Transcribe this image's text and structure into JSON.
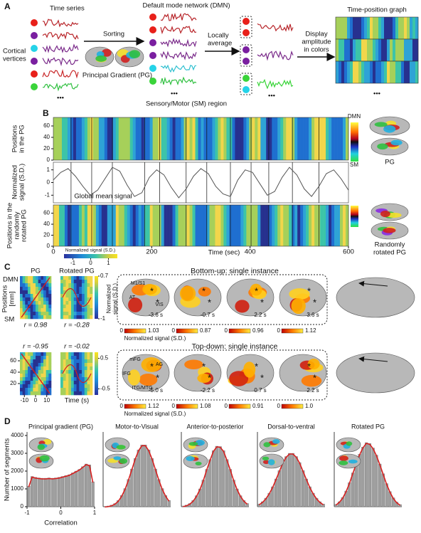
{
  "panel_a": {
    "label": "A",
    "time_series": "Time series",
    "cortical_vertices": [
      "Cortical",
      "vertices"
    ],
    "sorting": "Sorting",
    "principal_gradient": "Principal Gradient (PG)",
    "dmn": "Default mode network (DMN)",
    "sm_region": "Sensory/Motor (SM) region",
    "locally_average": [
      "Locally",
      "average"
    ],
    "display": [
      "Display",
      "amplitude",
      "in colors"
    ],
    "time_position_graph": "Time-position graph",
    "ellipsis": "•••"
  },
  "panel_b": {
    "label": "B",
    "dmn": "DMN",
    "sm": "SM",
    "pg": "PG",
    "randomly_rotated_pg": [
      "Randomly",
      "rotated PG"
    ],
    "top_heatmap": {
      "ylabel": [
        "Positions",
        "in the PG"
      ],
      "ylim": [
        0,
        75
      ],
      "yticks": [
        0,
        20,
        40,
        60
      ]
    },
    "signal": {
      "ylabel": [
        "Normalized",
        "signal (S.D.)"
      ],
      "ylim": [
        -1.6,
        1.6
      ],
      "yticks": [
        -1,
        0,
        1
      ],
      "annotation": "Global mean signal",
      "x": [
        0,
        15,
        30,
        45,
        60,
        75,
        90,
        105,
        120,
        135,
        150,
        165,
        180,
        195,
        210,
        225,
        240,
        255,
        270,
        285,
        300,
        315,
        330,
        345,
        360,
        375,
        390,
        405,
        420,
        435,
        450,
        465,
        480,
        495,
        510,
        525,
        540,
        555,
        570,
        585,
        600
      ],
      "values": [
        0.2,
        0.8,
        1.1,
        0.5,
        -0.3,
        -1.0,
        -0.6,
        0.3,
        1.2,
        0.9,
        -0.2,
        -1.1,
        -0.8,
        0.4,
        1.0,
        0.6,
        -0.4,
        -1.2,
        -0.5,
        0.5,
        1.1,
        0.7,
        -0.3,
        -0.9,
        -1.1,
        0.2,
        1.0,
        0.8,
        -0.1,
        -1.0,
        -0.7,
        0.4,
        1.2,
        0.6,
        -0.5,
        -1.1,
        -0.3,
        0.7,
        1.0,
        0.3,
        -0.6
      ]
    },
    "bottom_heatmap": {
      "ylabel": [
        "Positions in the",
        "randomly",
        "rotated PG"
      ],
      "ylim": [
        0,
        75
      ],
      "yticks": [
        0,
        20,
        40,
        60
      ]
    },
    "xlim": [
      0,
      600
    ],
    "xticks": [
      0,
      200,
      400,
      600
    ],
    "xlabel": "Time (sec)",
    "colorbar": {
      "label": "Normalized signal (S.D.)",
      "lim": [
        -1.5,
        1.5
      ],
      "ticks": [
        -1,
        0,
        1
      ]
    }
  },
  "panel_c": {
    "label": "C",
    "top": {
      "pg": "PG",
      "rotated_pg": "Rotated PG",
      "dmn": "DMN",
      "sm": "SM",
      "ylabel": [
        "Positions",
        "[mm]"
      ],
      "r_pg": "r = 0.98",
      "r_rot": "r = -0.28",
      "colorbar": {
        "lim": [
          -1,
          0.7
        ],
        "ticks": [
          0.7,
          -1
        ],
        "label": [
          "Normalized",
          "signal (S.D.)"
        ]
      },
      "title": "Bottom-up:  single instance",
      "times": [
        "-3.6 s",
        "-0.7 s",
        "2.2 s",
        "3.6 s"
      ],
      "scale_min": [
        0,
        0,
        0,
        0
      ],
      "scale_max": [
        1.03,
        0.87,
        0.96,
        1.12
      ],
      "regions": [
        "M1/S1",
        "AT",
        "VIS"
      ],
      "scale_label": "Normalized signal (S.D.)"
    },
    "bottom": {
      "r_pg": "r = -0.95",
      "r_rot": "r = -0.02",
      "ylim": [
        0,
        75
      ],
      "yticks": [
        20,
        40,
        60
      ],
      "xlim": [
        -14,
        14
      ],
      "xticks": [
        -10,
        0,
        10
      ],
      "xlabel": "Time (s)",
      "colorbar": {
        "lim": [
          -0.7,
          0.7
        ],
        "ticks": [
          0.5,
          -0.5
        ]
      },
      "title": "Top-down:  single instance",
      "times": [
        "-5.0 s",
        "-2.2 s",
        "0.7 s",
        "2.2 s"
      ],
      "scale_min": [
        0,
        0,
        0,
        0
      ],
      "scale_max": [
        1.12,
        1.08,
        0.91,
        {
          "value": 1,
          "label": "1.0"
        }
      ],
      "regions": [
        "mFG",
        "IFG",
        "AG",
        "ITG/MTG"
      ],
      "scale_label": "Normalized signal (S.D.)"
    }
  },
  "panel_d": {
    "label": "D"
  },
  "chart_data": [
    {
      "type": "histogram",
      "title": "Principal gradient (PG)",
      "ylabel": "Number of segments",
      "xlabel": "Correlation",
      "ylim": [
        0,
        4200
      ],
      "yticks": [
        0,
        1000,
        2000,
        3000,
        4000
      ],
      "xlim": [
        -1,
        1
      ],
      "xticks": [
        -1,
        0,
        1
      ],
      "color": "#9e9e9e",
      "bins": [
        -1,
        -0.9,
        -0.8,
        -0.7,
        -0.6,
        -0.5,
        -0.4,
        -0.3,
        -0.2,
        -0.1,
        0,
        0.1,
        0.2,
        0.3,
        0.4,
        0.5,
        0.6,
        0.7,
        0.8,
        0.9,
        1
      ],
      "values": [
        1150,
        1700,
        1650,
        1620,
        1600,
        1600,
        1620,
        1600,
        1620,
        1650,
        1700,
        1750,
        1800,
        1900,
        2000,
        2100,
        2250,
        2400,
        2350,
        1400
      ]
    },
    {
      "type": "histogram",
      "title": "Motor-to-Visual",
      "color": "#9e9e9e",
      "bins": [
        -1,
        -0.9,
        -0.8,
        -0.7,
        -0.6,
        -0.5,
        -0.4,
        -0.3,
        -0.2,
        -0.1,
        0,
        0.1,
        0.2,
        0.3,
        0.4,
        0.5,
        0.6,
        0.7,
        0.8,
        0.9,
        1
      ],
      "values": [
        20,
        40,
        90,
        180,
        350,
        630,
        1020,
        1530,
        2120,
        2710,
        3190,
        3470,
        3470,
        3190,
        2710,
        2120,
        1530,
        1020,
        630,
        350
      ]
    },
    {
      "type": "histogram",
      "title": "Anterior-to-posterior",
      "color": "#9e9e9e",
      "bins": [
        -1,
        -0.9,
        -0.8,
        -0.7,
        -0.6,
        -0.5,
        -0.4,
        -0.3,
        -0.2,
        -0.1,
        0,
        0.1,
        0.2,
        0.3,
        0.4,
        0.5,
        0.6,
        0.7,
        0.8,
        0.9,
        1
      ],
      "values": [
        40,
        90,
        180,
        350,
        620,
        1000,
        1500,
        2100,
        2650,
        3150,
        3400,
        3380,
        3150,
        2650,
        2100,
        1500,
        1000,
        620,
        350,
        180
      ]
    },
    {
      "type": "histogram",
      "title": "Dorsal-to-ventral",
      "color": "#9e9e9e",
      "bins": [
        -1,
        -0.9,
        -0.8,
        -0.7,
        -0.6,
        -0.5,
        -0.4,
        -0.3,
        -0.2,
        -0.1,
        0,
        0.1,
        0.2,
        0.3,
        0.4,
        0.5,
        0.6,
        0.7,
        0.8,
        0.9,
        1
      ],
      "values": [
        150,
        280,
        480,
        760,
        1120,
        1560,
        2030,
        2480,
        2820,
        3000,
        3000,
        2820,
        2480,
        2030,
        1560,
        1120,
        760,
        480,
        280,
        150
      ]
    },
    {
      "type": "histogram",
      "title": "Rotated PG",
      "color": "#9e9e9e",
      "bins": [
        -1,
        -0.9,
        -0.8,
        -0.7,
        -0.6,
        -0.5,
        -0.4,
        -0.3,
        -0.2,
        -0.1,
        0,
        0.1,
        0.2,
        0.3,
        0.4,
        0.5,
        0.6,
        0.7,
        0.8,
        0.9,
        1
      ],
      "values": [
        130,
        280,
        520,
        880,
        1350,
        1900,
        2450,
        2950,
        3350,
        3600,
        3550,
        3300,
        2900,
        2400,
        1850,
        1300,
        850,
        500,
        260,
        120
      ]
    }
  ]
}
